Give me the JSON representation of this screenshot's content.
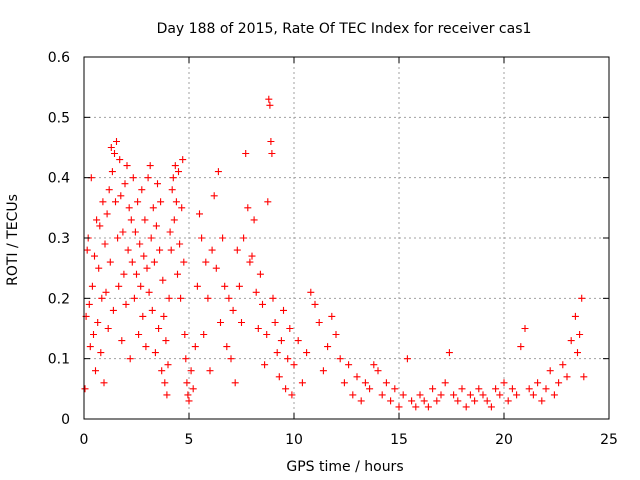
{
  "chart_data": {
    "type": "scatter",
    "title": "Day 188 of 2015, Rate Of TEC Index for receiver cas1",
    "xlabel": "GPS time / hours",
    "ylabel": "ROTI / TECUs",
    "xlim": [
      0,
      25
    ],
    "ylim": [
      0,
      0.6
    ],
    "xticks": [
      0,
      5,
      10,
      15,
      20,
      25
    ],
    "yticks": [
      0,
      0.1,
      0.2,
      0.3,
      0.4,
      0.5,
      0.6
    ],
    "xtick_labels": [
      "0",
      "5",
      "10",
      "15",
      "20",
      "25"
    ],
    "ytick_labels": [
      "0",
      "0.1",
      "0.2",
      "0.3",
      "0.4",
      "0.5",
      "0.6"
    ],
    "grid": true,
    "marker": "+",
    "color": "#ff0000",
    "series": [
      {
        "name": "ROTI",
        "points": [
          [
            0.05,
            0.05
          ],
          [
            0.1,
            0.17
          ],
          [
            0.15,
            0.28
          ],
          [
            0.2,
            0.3
          ],
          [
            0.25,
            0.19
          ],
          [
            0.3,
            0.12
          ],
          [
            0.35,
            0.4
          ],
          [
            0.4,
            0.22
          ],
          [
            0.45,
            0.14
          ],
          [
            0.5,
            0.27
          ],
          [
            0.55,
            0.08
          ],
          [
            0.6,
            0.33
          ],
          [
            0.65,
            0.16
          ],
          [
            0.7,
            0.25
          ],
          [
            0.75,
            0.32
          ],
          [
            0.8,
            0.11
          ],
          [
            0.85,
            0.2
          ],
          [
            0.9,
            0.36
          ],
          [
            0.95,
            0.06
          ],
          [
            1.0,
            0.29
          ],
          [
            1.05,
            0.21
          ],
          [
            1.1,
            0.34
          ],
          [
            1.15,
            0.15
          ],
          [
            1.2,
            0.38
          ],
          [
            1.25,
            0.26
          ],
          [
            1.3,
            0.45
          ],
          [
            1.35,
            0.41
          ],
          [
            1.4,
            0.18
          ],
          [
            1.45,
            0.44
          ],
          [
            1.5,
            0.36
          ],
          [
            1.55,
            0.46
          ],
          [
            1.6,
            0.3
          ],
          [
            1.65,
            0.22
          ],
          [
            1.7,
            0.43
          ],
          [
            1.75,
            0.37
          ],
          [
            1.8,
            0.13
          ],
          [
            1.85,
            0.31
          ],
          [
            1.9,
            0.24
          ],
          [
            1.95,
            0.39
          ],
          [
            2.0,
            0.19
          ],
          [
            2.05,
            0.42
          ],
          [
            2.1,
            0.28
          ],
          [
            2.15,
            0.35
          ],
          [
            2.2,
            0.1
          ],
          [
            2.25,
            0.33
          ],
          [
            2.3,
            0.26
          ],
          [
            2.35,
            0.4
          ],
          [
            2.4,
            0.2
          ],
          [
            2.45,
            0.31
          ],
          [
            2.5,
            0.24
          ],
          [
            2.55,
            0.36
          ],
          [
            2.6,
            0.14
          ],
          [
            2.65,
            0.29
          ],
          [
            2.7,
            0.22
          ],
          [
            2.75,
            0.38
          ],
          [
            2.8,
            0.17
          ],
          [
            2.85,
            0.27
          ],
          [
            2.9,
            0.33
          ],
          [
            2.95,
            0.12
          ],
          [
            3.0,
            0.25
          ],
          [
            3.05,
            0.4
          ],
          [
            3.1,
            0.21
          ],
          [
            3.15,
            0.42
          ],
          [
            3.2,
            0.3
          ],
          [
            3.25,
            0.18
          ],
          [
            3.3,
            0.35
          ],
          [
            3.35,
            0.26
          ],
          [
            3.4,
            0.11
          ],
          [
            3.45,
            0.32
          ],
          [
            3.5,
            0.39
          ],
          [
            3.55,
            0.15
          ],
          [
            3.6,
            0.28
          ],
          [
            3.65,
            0.36
          ],
          [
            3.7,
            0.08
          ],
          [
            3.75,
            0.23
          ],
          [
            3.8,
            0.17
          ],
          [
            3.85,
            0.06
          ],
          [
            3.9,
            0.13
          ],
          [
            3.95,
            0.04
          ],
          [
            4.0,
            0.09
          ],
          [
            4.05,
            0.2
          ],
          [
            4.1,
            0.31
          ],
          [
            4.15,
            0.28
          ],
          [
            4.2,
            0.38
          ],
          [
            4.25,
            0.4
          ],
          [
            4.3,
            0.33
          ],
          [
            4.35,
            0.42
          ],
          [
            4.4,
            0.36
          ],
          [
            4.45,
            0.24
          ],
          [
            4.5,
            0.41
          ],
          [
            4.55,
            0.29
          ],
          [
            4.6,
            0.2
          ],
          [
            4.65,
            0.35
          ],
          [
            4.7,
            0.43
          ],
          [
            4.75,
            0.26
          ],
          [
            4.8,
            0.14
          ],
          [
            4.85,
            0.1
          ],
          [
            4.9,
            0.06
          ],
          [
            4.95,
            0.04
          ],
          [
            5.0,
            0.03
          ],
          [
            5.1,
            0.08
          ],
          [
            5.2,
            0.05
          ],
          [
            5.3,
            0.12
          ],
          [
            5.4,
            0.22
          ],
          [
            5.5,
            0.34
          ],
          [
            5.6,
            0.3
          ],
          [
            5.7,
            0.14
          ],
          [
            5.8,
            0.26
          ],
          [
            5.9,
            0.2
          ],
          [
            6.0,
            0.08
          ],
          [
            6.1,
            0.28
          ],
          [
            6.2,
            0.37
          ],
          [
            6.3,
            0.25
          ],
          [
            6.4,
            0.41
          ],
          [
            6.5,
            0.16
          ],
          [
            6.6,
            0.3
          ],
          [
            6.7,
            0.22
          ],
          [
            6.8,
            0.12
          ],
          [
            6.9,
            0.2
          ],
          [
            7.0,
            0.1
          ],
          [
            7.1,
            0.18
          ],
          [
            7.2,
            0.06
          ],
          [
            7.3,
            0.28
          ],
          [
            7.4,
            0.22
          ],
          [
            7.5,
            0.16
          ],
          [
            7.6,
            0.3
          ],
          [
            7.7,
            0.44
          ],
          [
            7.8,
            0.35
          ],
          [
            7.9,
            0.26
          ],
          [
            8.0,
            0.27
          ],
          [
            8.1,
            0.33
          ],
          [
            8.2,
            0.21
          ],
          [
            8.3,
            0.15
          ],
          [
            8.4,
            0.24
          ],
          [
            8.5,
            0.19
          ],
          [
            8.6,
            0.09
          ],
          [
            8.7,
            0.14
          ],
          [
            8.75,
            0.36
          ],
          [
            8.8,
            0.53
          ],
          [
            8.85,
            0.52
          ],
          [
            8.9,
            0.46
          ],
          [
            8.95,
            0.44
          ],
          [
            9.0,
            0.2
          ],
          [
            9.1,
            0.16
          ],
          [
            9.2,
            0.11
          ],
          [
            9.3,
            0.07
          ],
          [
            9.4,
            0.13
          ],
          [
            9.5,
            0.18
          ],
          [
            9.6,
            0.05
          ],
          [
            9.7,
            0.1
          ],
          [
            9.8,
            0.15
          ],
          [
            9.9,
            0.04
          ],
          [
            10.0,
            0.09
          ],
          [
            10.2,
            0.13
          ],
          [
            10.4,
            0.06
          ],
          [
            10.6,
            0.11
          ],
          [
            10.8,
            0.21
          ],
          [
            11.0,
            0.19
          ],
          [
            11.2,
            0.16
          ],
          [
            11.4,
            0.08
          ],
          [
            11.6,
            0.12
          ],
          [
            11.8,
            0.17
          ],
          [
            12.0,
            0.14
          ],
          [
            12.2,
            0.1
          ],
          [
            12.4,
            0.06
          ],
          [
            12.6,
            0.09
          ],
          [
            12.8,
            0.04
          ],
          [
            13.0,
            0.07
          ],
          [
            13.2,
            0.03
          ],
          [
            13.4,
            0.06
          ],
          [
            13.6,
            0.05
          ],
          [
            13.8,
            0.09
          ],
          [
            14.0,
            0.08
          ],
          [
            14.2,
            0.04
          ],
          [
            14.4,
            0.06
          ],
          [
            14.6,
            0.03
          ],
          [
            14.8,
            0.05
          ],
          [
            15.0,
            0.02
          ],
          [
            15.2,
            0.04
          ],
          [
            15.4,
            0.1
          ],
          [
            15.6,
            0.03
          ],
          [
            15.8,
            0.02
          ],
          [
            16.0,
            0.04
          ],
          [
            16.2,
            0.03
          ],
          [
            16.4,
            0.02
          ],
          [
            16.6,
            0.05
          ],
          [
            16.8,
            0.03
          ],
          [
            17.0,
            0.04
          ],
          [
            17.2,
            0.06
          ],
          [
            17.4,
            0.11
          ],
          [
            17.6,
            0.04
          ],
          [
            17.8,
            0.03
          ],
          [
            18.0,
            0.05
          ],
          [
            18.2,
            0.02
          ],
          [
            18.4,
            0.04
          ],
          [
            18.6,
            0.03
          ],
          [
            18.8,
            0.05
          ],
          [
            19.0,
            0.04
          ],
          [
            19.2,
            0.03
          ],
          [
            19.4,
            0.02
          ],
          [
            19.6,
            0.05
          ],
          [
            19.8,
            0.04
          ],
          [
            20.0,
            0.06
          ],
          [
            20.2,
            0.03
          ],
          [
            20.4,
            0.05
          ],
          [
            20.6,
            0.04
          ],
          [
            20.8,
            0.12
          ],
          [
            21.0,
            0.15
          ],
          [
            21.2,
            0.05
          ],
          [
            21.4,
            0.04
          ],
          [
            21.6,
            0.06
          ],
          [
            21.8,
            0.03
          ],
          [
            22.0,
            0.05
          ],
          [
            22.2,
            0.08
          ],
          [
            22.4,
            0.04
          ],
          [
            22.6,
            0.06
          ],
          [
            22.8,
            0.09
          ],
          [
            23.0,
            0.07
          ],
          [
            23.2,
            0.13
          ],
          [
            23.4,
            0.17
          ],
          [
            23.5,
            0.11
          ],
          [
            23.6,
            0.14
          ],
          [
            23.7,
            0.2
          ],
          [
            23.8,
            0.07
          ]
        ]
      }
    ]
  }
}
